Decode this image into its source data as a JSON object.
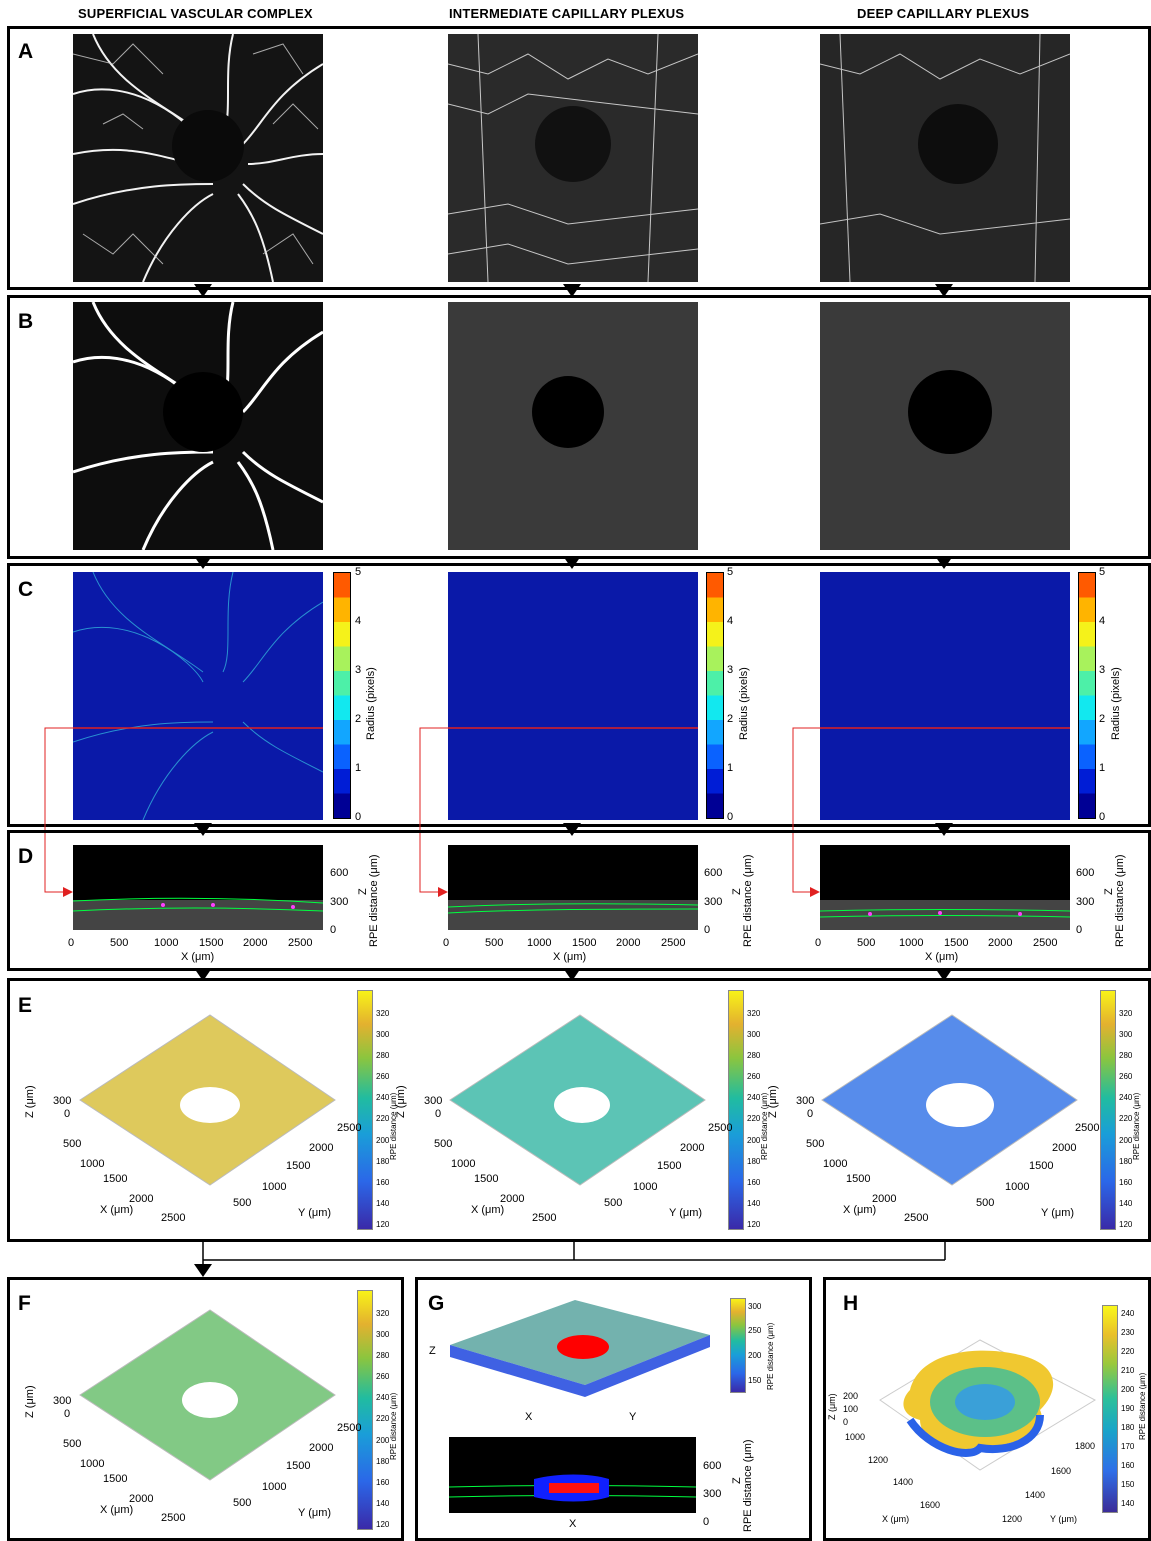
{
  "columns": {
    "svc": "SUPERFICIAL VASCULAR COMPLEX",
    "icp": "INTERMEDIATE CAPILLARY PLEXUS",
    "dcp": "DEEP CAPILLARY PLEXUS"
  },
  "panels": {
    "a": "A",
    "b": "B",
    "c": "C",
    "d": "D",
    "e": "E",
    "f": "F",
    "g": "G",
    "h": "H"
  },
  "radius_colorbar": {
    "label": "Radius (pixels)",
    "ticks": [
      "0",
      "1",
      "2",
      "3",
      "4",
      "5"
    ]
  },
  "bscan": {
    "xlabel": "X (μm)",
    "xticks": [
      "0",
      "500",
      "1000",
      "1500",
      "2000",
      "2500"
    ],
    "zlabel": "Z",
    "rpe_label": "RPE distance (μm)",
    "zticks": [
      "0",
      "300",
      "600"
    ]
  },
  "surface3d": {
    "zlabel": "Z (μm)",
    "zticks": [
      "300",
      "0"
    ],
    "xlabel": "X (μm)",
    "xticks": [
      "500",
      "1000",
      "1500",
      "2000",
      "2500"
    ],
    "ylabel": "Y (μm)",
    "yticks": [
      "500",
      "1000",
      "1500",
      "2000",
      "2500"
    ],
    "cbar_label": "RPE distance (μm)",
    "cbar_ticks": [
      "120",
      "140",
      "160",
      "180",
      "200",
      "220",
      "240",
      "260",
      "280",
      "300",
      "320"
    ]
  },
  "panel_g": {
    "z": "Z",
    "x": "X",
    "y": "Y",
    "cbar_label": "RPE distance (μm)",
    "cbar_ticks": [
      "150",
      "200",
      "250",
      "300"
    ],
    "rpe_label": "RPE distance (μm)",
    "zlabel": "Z",
    "zticks": [
      "0",
      "300",
      "600"
    ],
    "xlabel": "X"
  },
  "panel_h": {
    "zlabel": "Z (μm)",
    "zticks": [
      "200",
      "100",
      "0"
    ],
    "xlabel": "X (μm)",
    "xticks": [
      "1000",
      "1200",
      "1400",
      "1600"
    ],
    "ylabel": "Y (μm)",
    "yticks": [
      "1200",
      "1400",
      "1600",
      "1800"
    ],
    "cbar_label": "RPE distance (μm)",
    "cbar_ticks": [
      "140",
      "150",
      "160",
      "170",
      "180",
      "190",
      "200",
      "210",
      "220",
      "230",
      "240"
    ]
  },
  "colors": {
    "red_line": "#e02020",
    "green_line": "#00ff40",
    "magenta": "#ff40ff"
  }
}
